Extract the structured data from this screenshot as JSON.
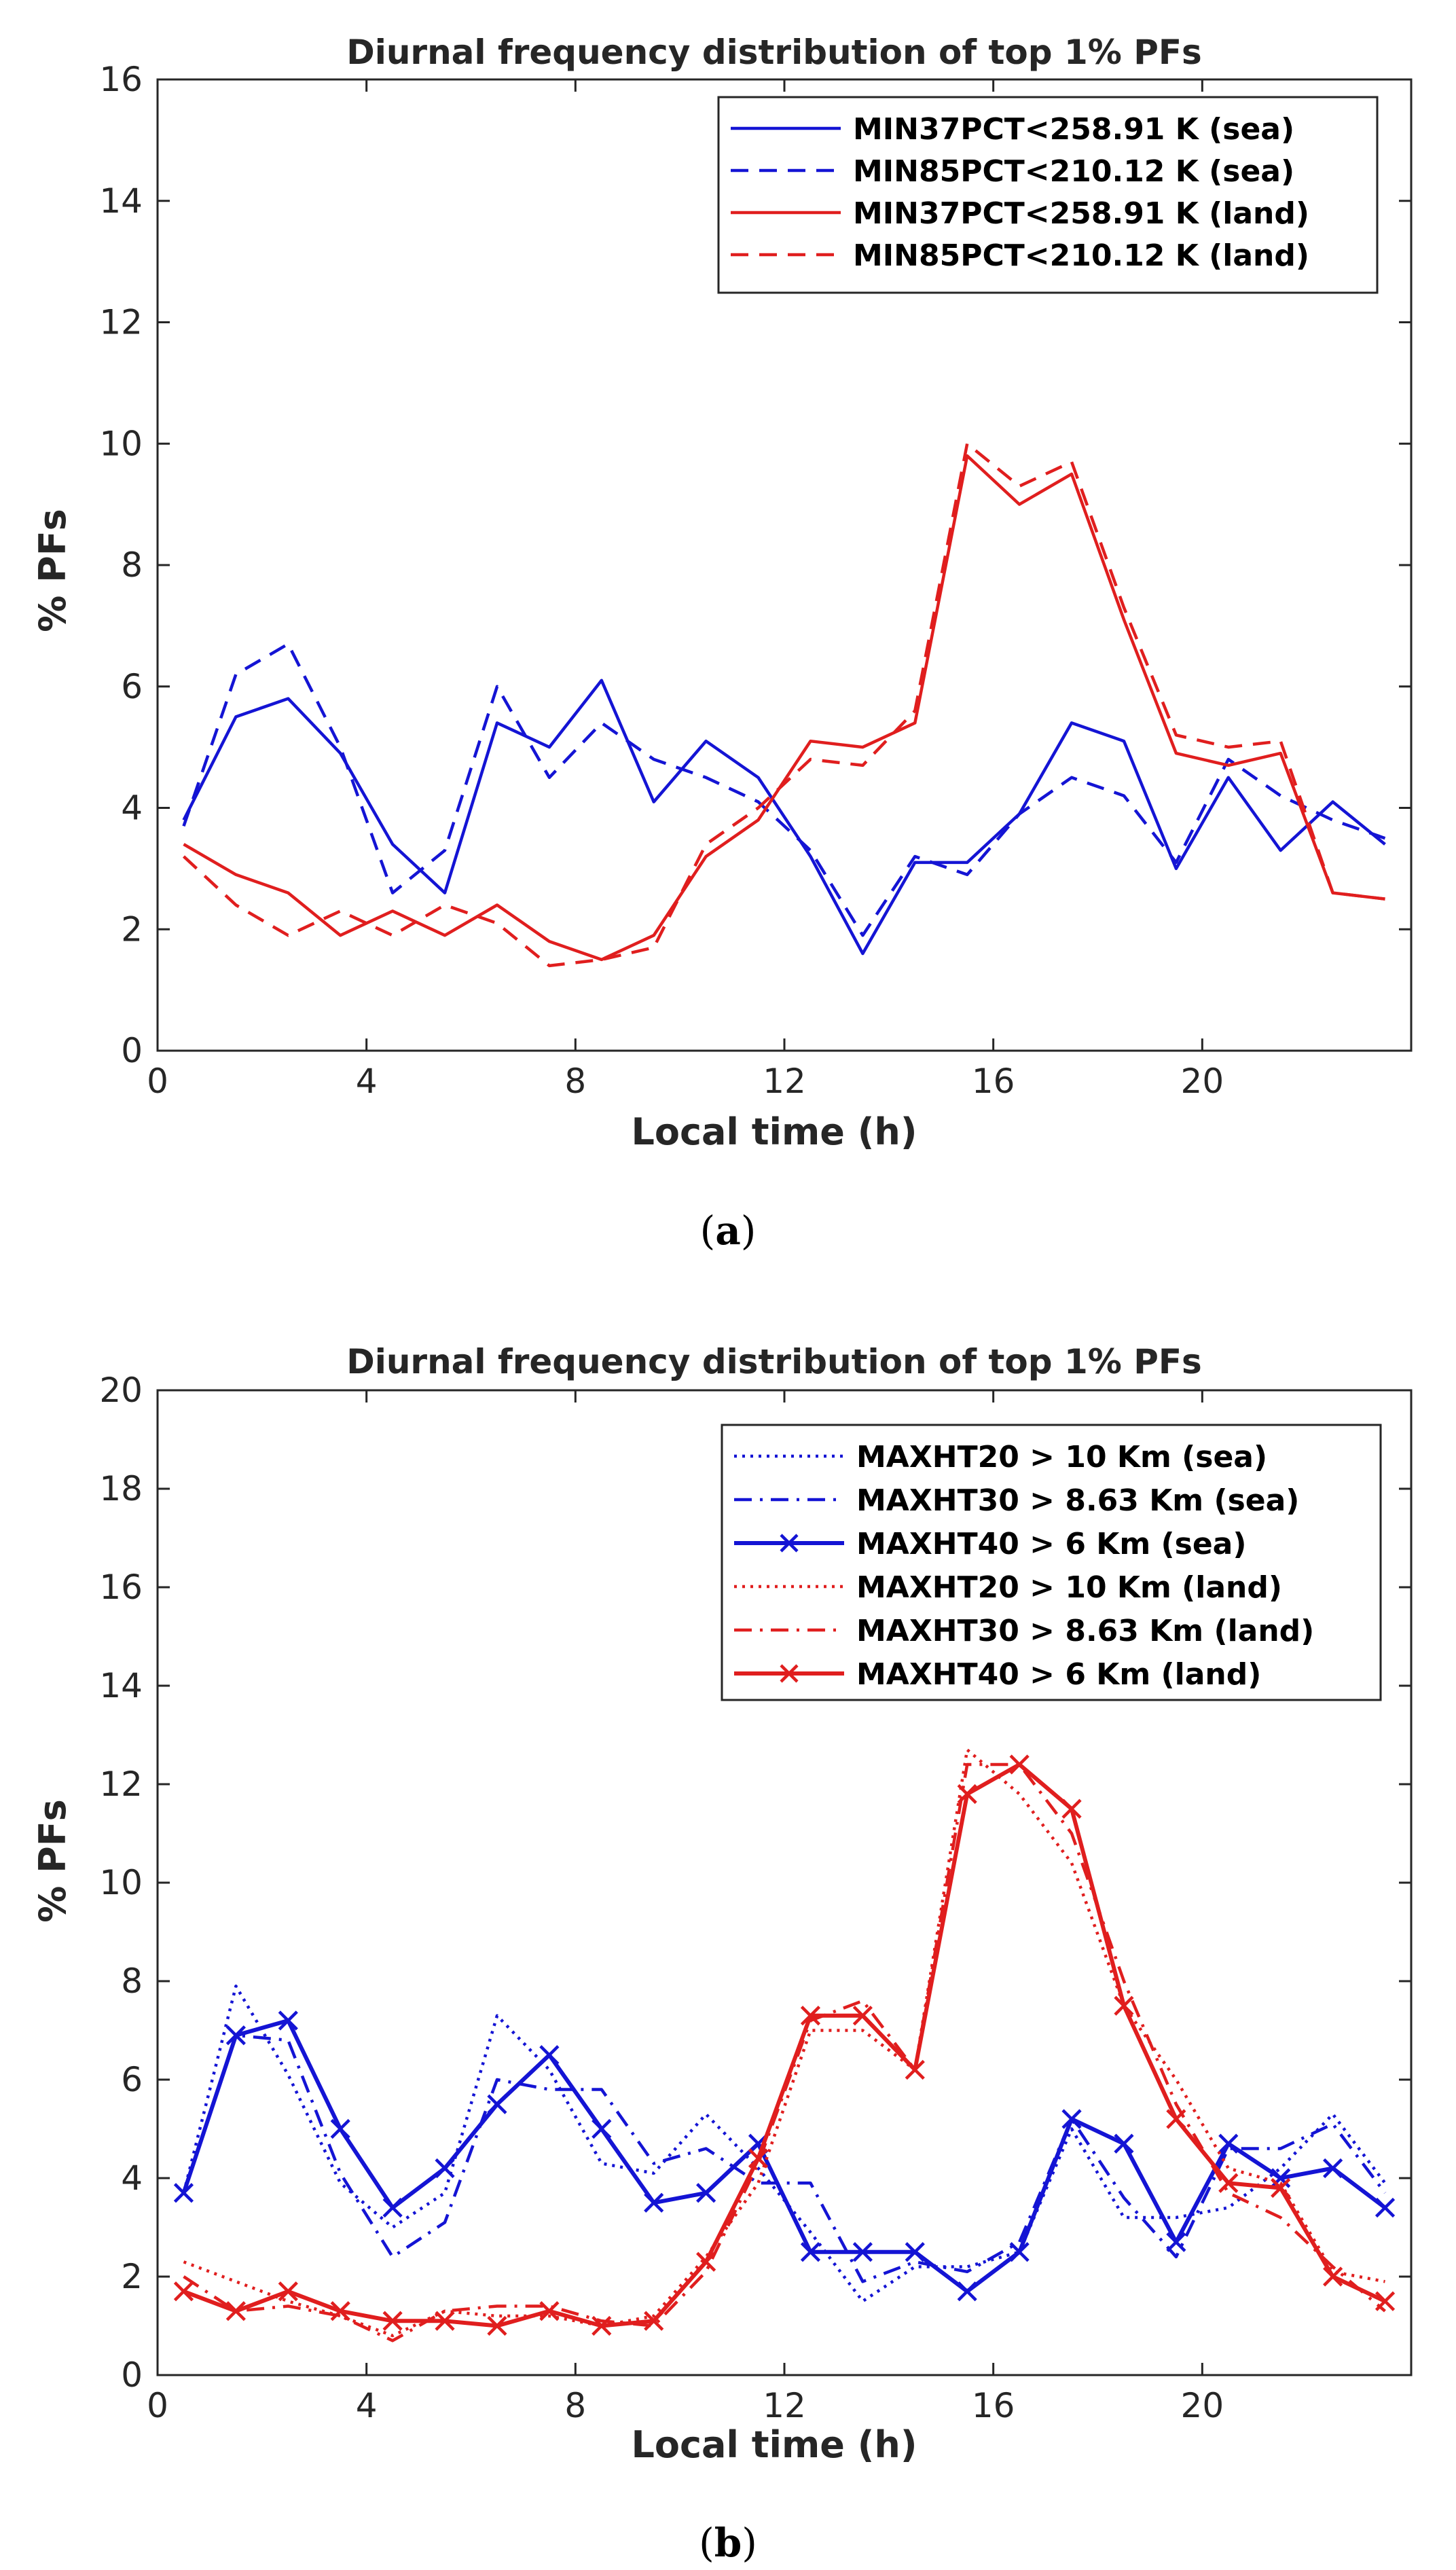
{
  "figures": [
    {
      "caption_open": "(",
      "caption_letter": "a",
      "caption_close": ")",
      "colors": {
        "sea": "#1414d4",
        "land": "#e01e1e"
      }
    },
    {
      "caption_open": "(",
      "caption_letter": "b",
      "caption_close": ")",
      "colors": {
        "sea": "#1414d4",
        "land": "#e01e1e"
      }
    }
  ],
  "chart_data": [
    {
      "type": "line",
      "title": "Diurnal frequency distribution of top 1% PFs",
      "xlabel": "Local time (h)",
      "ylabel": "% PFs",
      "xlim": [
        0,
        24
      ],
      "ylim": [
        0,
        16
      ],
      "xticks": [
        0,
        4,
        8,
        12,
        16,
        20
      ],
      "yticks": [
        0,
        2,
        4,
        6,
        8,
        10,
        12,
        14,
        16
      ],
      "legend_position": "top-right",
      "x": [
        0.5,
        1.5,
        2.5,
        3.5,
        4.5,
        5.5,
        6.5,
        7.5,
        8.5,
        9.5,
        10.5,
        11.5,
        12.5,
        13.5,
        14.5,
        15.5,
        16.5,
        17.5,
        18.5,
        19.5,
        20.5,
        21.5,
        22.5,
        23.5
      ],
      "series": [
        {
          "name": "MIN37PCT<258.91 K (sea)",
          "color": "sea",
          "style": "solid",
          "marker": "none",
          "values": [
            3.8,
            5.5,
            5.8,
            4.9,
            3.4,
            2.6,
            5.4,
            5.0,
            6.1,
            4.1,
            5.1,
            4.5,
            3.2,
            1.6,
            3.1,
            3.1,
            3.9,
            5.4,
            5.1,
            3.0,
            4.5,
            3.3,
            4.1,
            3.4
          ]
        },
        {
          "name": "MIN85PCT<210.12 K (sea)",
          "color": "sea",
          "style": "dashed",
          "marker": "none",
          "values": [
            3.7,
            6.2,
            6.7,
            5.0,
            2.6,
            3.3,
            6.0,
            4.5,
            5.4,
            4.8,
            4.5,
            4.1,
            3.3,
            1.9,
            3.2,
            2.9,
            3.9,
            4.5,
            4.2,
            3.1,
            4.8,
            4.2,
            3.8,
            3.5
          ]
        },
        {
          "name": "MIN37PCT<258.91 K (land)",
          "color": "land",
          "style": "solid",
          "marker": "none",
          "values": [
            3.4,
            2.9,
            2.6,
            1.9,
            2.3,
            1.9,
            2.4,
            1.8,
            1.5,
            1.9,
            3.2,
            3.8,
            5.1,
            5.0,
            5.4,
            9.8,
            9.0,
            9.5,
            7.1,
            4.9,
            4.7,
            4.9,
            2.6,
            2.5
          ]
        },
        {
          "name": "MIN85PCT<210.12 K (land)",
          "color": "land",
          "style": "dashed",
          "marker": "none",
          "values": [
            3.2,
            2.4,
            1.9,
            2.3,
            1.9,
            2.4,
            2.1,
            1.4,
            1.5,
            1.7,
            3.4,
            4.0,
            4.8,
            4.7,
            5.6,
            10.0,
            9.3,
            9.7,
            7.3,
            5.2,
            5.0,
            5.1,
            2.6,
            2.5
          ]
        }
      ]
    },
    {
      "type": "line",
      "title": "Diurnal frequency distribution of top 1% PFs",
      "xlabel": "Local time (h)",
      "ylabel": "% PFs",
      "xlim": [
        0,
        24
      ],
      "ylim": [
        0,
        20
      ],
      "xticks": [
        0,
        4,
        8,
        12,
        16,
        20
      ],
      "yticks": [
        0,
        2,
        4,
        6,
        8,
        10,
        12,
        14,
        16,
        18,
        20
      ],
      "legend_position": "top-right",
      "x": [
        0.5,
        1.5,
        2.5,
        3.5,
        4.5,
        5.5,
        6.5,
        7.5,
        8.5,
        9.5,
        10.5,
        11.5,
        12.5,
        13.5,
        14.5,
        15.5,
        16.5,
        17.5,
        18.5,
        19.5,
        20.5,
        21.5,
        22.5,
        23.5
      ],
      "series": [
        {
          "name": "MAXHT20 > 10 Km (sea)",
          "color": "sea",
          "style": "dotted",
          "marker": "none",
          "values": [
            3.7,
            7.9,
            6.1,
            3.9,
            3.0,
            3.7,
            7.3,
            6.2,
            4.3,
            4.1,
            5.3,
            4.2,
            2.9,
            1.5,
            2.2,
            2.2,
            2.5,
            5.0,
            3.2,
            3.2,
            3.4,
            4.2,
            5.3,
            3.9
          ]
        },
        {
          "name": "MAXHT30 > 8.63 Km (sea)",
          "color": "sea",
          "style": "dashdot",
          "marker": "none",
          "values": [
            3.7,
            6.9,
            6.8,
            4.1,
            2.4,
            3.1,
            6.0,
            5.8,
            5.8,
            4.3,
            4.6,
            3.9,
            3.9,
            1.9,
            2.3,
            2.1,
            2.7,
            5.2,
            3.6,
            2.4,
            4.6,
            4.6,
            5.1,
            3.7
          ]
        },
        {
          "name": "MAXHT40 > 6 Km (sea)",
          "color": "sea",
          "style": "solid",
          "marker": "x",
          "values": [
            3.7,
            6.9,
            7.2,
            5.0,
            3.4,
            4.2,
            5.5,
            6.5,
            5.0,
            3.5,
            3.7,
            4.7,
            2.5,
            2.5,
            2.5,
            1.7,
            2.5,
            5.2,
            4.7,
            2.7,
            4.7,
            4.0,
            4.2,
            3.4
          ]
        },
        {
          "name": "MAXHT20 > 10 Km (land)",
          "color": "land",
          "style": "dotted",
          "marker": "none",
          "values": [
            2.3,
            1.9,
            1.5,
            1.2,
            0.8,
            1.3,
            1.2,
            1.2,
            1.0,
            1.2,
            2.4,
            3.9,
            7.0,
            7.0,
            6.2,
            12.7,
            11.8,
            10.4,
            7.5,
            6.0,
            4.2,
            3.9,
            2.1,
            1.9
          ]
        },
        {
          "name": "MAXHT30 > 8.63 Km (land)",
          "color": "land",
          "style": "dashdot",
          "marker": "none",
          "values": [
            2.0,
            1.3,
            1.4,
            1.2,
            0.7,
            1.3,
            1.4,
            1.4,
            1.1,
            1.0,
            2.1,
            4.3,
            7.2,
            7.6,
            6.2,
            12.4,
            12.4,
            11.0,
            8.0,
            5.5,
            3.7,
            3.2,
            2.2,
            1.3
          ]
        },
        {
          "name": "MAXHT40 > 6 Km (land)",
          "color": "land",
          "style": "solid",
          "marker": "x",
          "values": [
            1.7,
            1.3,
            1.7,
            1.3,
            1.1,
            1.1,
            1.0,
            1.3,
            1.0,
            1.1,
            2.3,
            4.4,
            7.3,
            7.3,
            6.2,
            11.8,
            12.4,
            11.5,
            7.5,
            5.2,
            3.9,
            3.8,
            2.0,
            1.5
          ]
        }
      ]
    }
  ]
}
